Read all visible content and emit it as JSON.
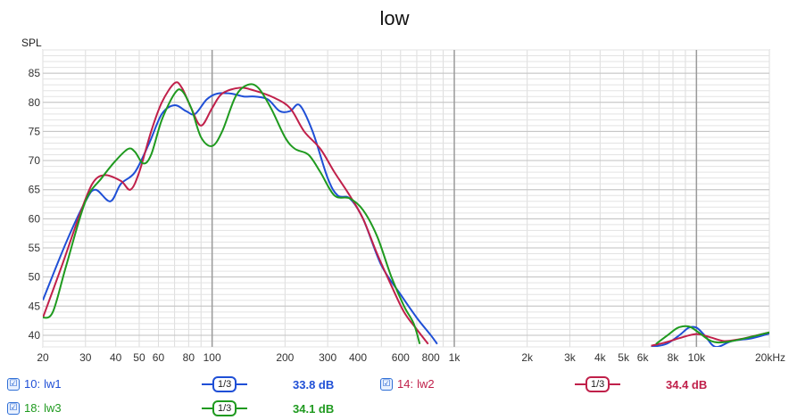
{
  "chart_data": {
    "type": "line",
    "title": "low",
    "ylabel": "SPL",
    "xlabel": "",
    "x_scale": "log",
    "xlim": [
      20,
      20000
    ],
    "ylim": [
      38,
      89
    ],
    "grid": true,
    "x_ticks": [
      20,
      30,
      40,
      50,
      60,
      80,
      100,
      200,
      300,
      400,
      600,
      800,
      1000,
      2000,
      3000,
      4000,
      5000,
      6000,
      8000,
      10000,
      20000
    ],
    "x_tick_labels": [
      "20",
      "30",
      "40",
      "50",
      "60",
      "80",
      "100",
      "200",
      "300",
      "400",
      "600",
      "800",
      "1k",
      "2k",
      "3k",
      "4k",
      "5k",
      "6k",
      "8k",
      "10k",
      "20kHz"
    ],
    "y_ticks": [
      40,
      45,
      50,
      55,
      60,
      65,
      70,
      75,
      80,
      85
    ],
    "series": [
      {
        "name": "lw1",
        "color": "#1f4fd6",
        "points": [
          [
            20,
            46
          ],
          [
            25,
            56
          ],
          [
            30,
            63
          ],
          [
            33,
            65
          ],
          [
            38,
            63
          ],
          [
            42,
            66
          ],
          [
            48,
            68
          ],
          [
            55,
            73
          ],
          [
            62,
            78
          ],
          [
            70,
            79.5
          ],
          [
            78,
            78.5
          ],
          [
            85,
            78
          ],
          [
            95,
            80.5
          ],
          [
            105,
            81.5
          ],
          [
            120,
            81.5
          ],
          [
            135,
            81
          ],
          [
            150,
            81
          ],
          [
            170,
            80.5
          ],
          [
            190,
            78.5
          ],
          [
            210,
            78.5
          ],
          [
            230,
            79.5
          ],
          [
            260,
            75
          ],
          [
            300,
            67
          ],
          [
            330,
            64
          ],
          [
            370,
            63.5
          ],
          [
            420,
            60
          ],
          [
            500,
            52
          ],
          [
            600,
            47
          ],
          [
            700,
            43
          ],
          [
            800,
            40
          ],
          [
            850,
            38.5
          ],
          [
            6500,
            38
          ],
          [
            7500,
            38.5
          ],
          [
            8500,
            40
          ],
          [
            9300,
            41.3
          ],
          [
            10000,
            41.3
          ],
          [
            10800,
            40
          ],
          [
            12000,
            38
          ],
          [
            14000,
            39
          ],
          [
            17000,
            39.5
          ],
          [
            20000,
            40.3
          ]
        ]
      },
      {
        "name": "lw2",
        "color": "#c0204a",
        "points": [
          [
            20,
            43
          ],
          [
            24,
            52
          ],
          [
            28,
            60
          ],
          [
            32,
            66
          ],
          [
            36,
            67.5
          ],
          [
            42,
            66.5
          ],
          [
            46,
            65
          ],
          [
            50,
            68
          ],
          [
            56,
            75
          ],
          [
            62,
            80
          ],
          [
            70,
            83.3
          ],
          [
            75,
            82.5
          ],
          [
            82,
            79
          ],
          [
            90,
            76
          ],
          [
            100,
            79
          ],
          [
            110,
            81.5
          ],
          [
            130,
            82.5
          ],
          [
            150,
            82
          ],
          [
            180,
            80.8
          ],
          [
            210,
            79
          ],
          [
            240,
            75
          ],
          [
            280,
            72
          ],
          [
            320,
            68
          ],
          [
            370,
            64
          ],
          [
            420,
            60
          ],
          [
            480,
            54
          ],
          [
            550,
            48.5
          ],
          [
            620,
            44
          ],
          [
            700,
            41
          ],
          [
            780,
            38.5
          ],
          [
            6500,
            38.2
          ],
          [
            7500,
            38.8
          ],
          [
            8500,
            39.5
          ],
          [
            10000,
            40.2
          ],
          [
            11500,
            39.6
          ],
          [
            13000,
            39
          ],
          [
            15000,
            39.3
          ],
          [
            17000,
            39.8
          ],
          [
            20000,
            40.5
          ]
        ]
      },
      {
        "name": "lw3",
        "color": "#1f9a1f",
        "points": [
          [
            20,
            43
          ],
          [
            22,
            44
          ],
          [
            25,
            52
          ],
          [
            30,
            63
          ],
          [
            35,
            67
          ],
          [
            40,
            70
          ],
          [
            45,
            72
          ],
          [
            48,
            71.5
          ],
          [
            52,
            69.5
          ],
          [
            56,
            71
          ],
          [
            62,
            77
          ],
          [
            70,
            81.5
          ],
          [
            75,
            82
          ],
          [
            82,
            79
          ],
          [
            90,
            74
          ],
          [
            100,
            72.5
          ],
          [
            110,
            75
          ],
          [
            125,
            81
          ],
          [
            140,
            83
          ],
          [
            155,
            82.5
          ],
          [
            175,
            79
          ],
          [
            200,
            74
          ],
          [
            220,
            72
          ],
          [
            250,
            71
          ],
          [
            280,
            68
          ],
          [
            320,
            64
          ],
          [
            370,
            63.5
          ],
          [
            420,
            61.5
          ],
          [
            480,
            57
          ],
          [
            550,
            50
          ],
          [
            620,
            45
          ],
          [
            680,
            42
          ],
          [
            720,
            38.5
          ],
          [
            6800,
            38.5
          ],
          [
            7600,
            40
          ],
          [
            8400,
            41.3
          ],
          [
            9300,
            41.5
          ],
          [
            10200,
            40.5
          ],
          [
            11500,
            39
          ],
          [
            13000,
            38.8
          ],
          [
            16000,
            39.5
          ],
          [
            20000,
            40.5
          ]
        ]
      }
    ]
  },
  "legend": [
    {
      "id": "10:",
      "name": "lw1",
      "value": "33.8 dB",
      "smoothing": "1/3",
      "checked": "☑",
      "color": "#1f4fd6"
    },
    {
      "id": "14:",
      "name": "lw2",
      "value": "34.4 dB",
      "smoothing": "1/3",
      "checked": "☑",
      "color": "#c0204a"
    },
    {
      "id": "18:",
      "name": "lw3",
      "value": "34.1 dB",
      "smoothing": "1/3",
      "checked": "☑",
      "color": "#1f9a1f"
    }
  ]
}
